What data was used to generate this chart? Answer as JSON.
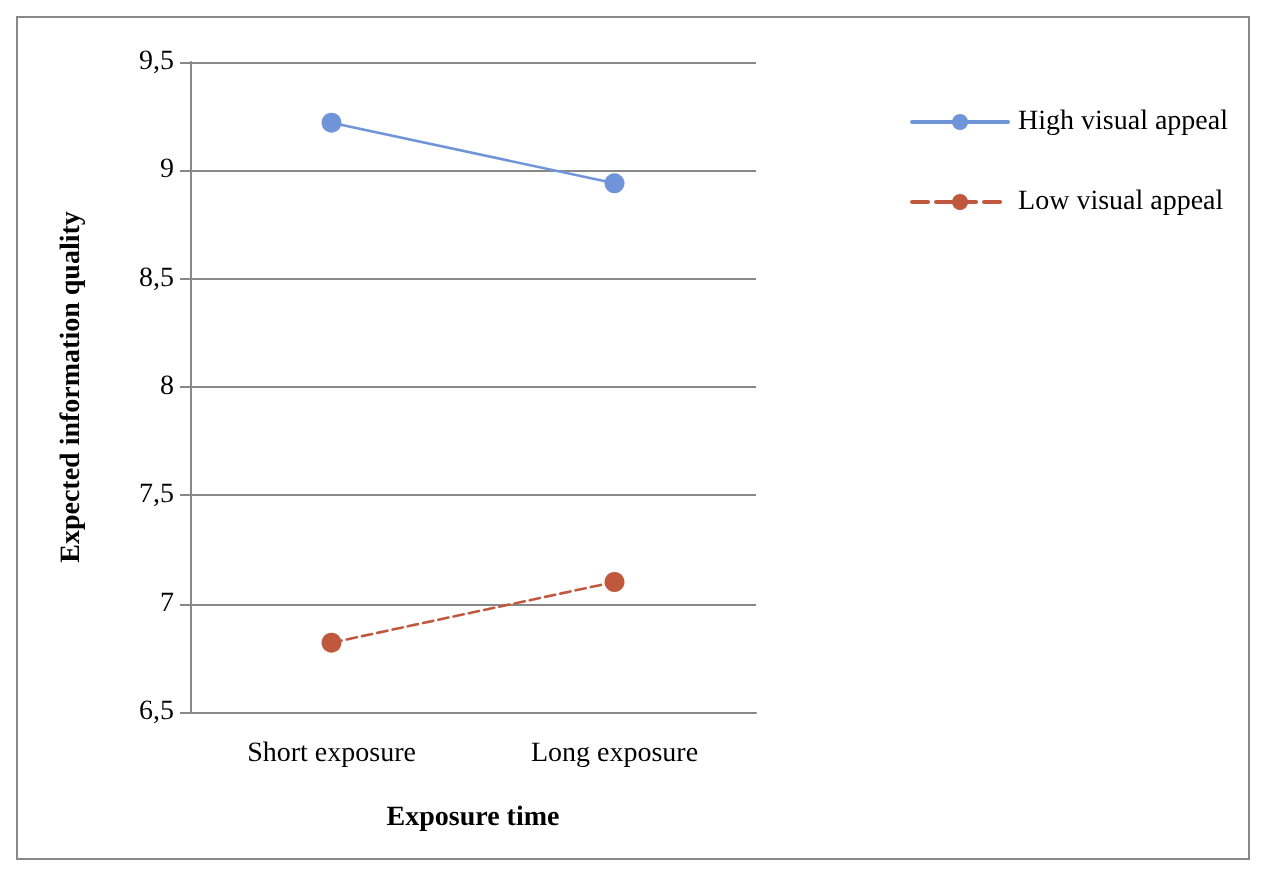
{
  "chart_data": {
    "type": "line",
    "xlabel": "Exposure time",
    "ylabel": "Expected information quality",
    "categories": [
      "Short exposure",
      "Long exposure"
    ],
    "series": [
      {
        "name": "High visual appeal",
        "color": "#6f94d8",
        "values": [
          9.22,
          8.94
        ],
        "line_style": "solid"
      },
      {
        "name": "Low visual appeal",
        "color": "#c0583e",
        "values": [
          6.82,
          7.1
        ],
        "line_style": "dashed"
      }
    ],
    "ylim": [
      6.5,
      9.5
    ],
    "yticks": [
      {
        "value": 6.5,
        "label": "6,5"
      },
      7,
      {
        "value": 7.5,
        "label": "7,5"
      },
      8,
      {
        "value": 8.5,
        "label": "8,5"
      },
      9,
      {
        "value": 9.5,
        "label": "9,5"
      }
    ],
    "grid": "y",
    "legend": "right",
    "marker": "circle"
  }
}
